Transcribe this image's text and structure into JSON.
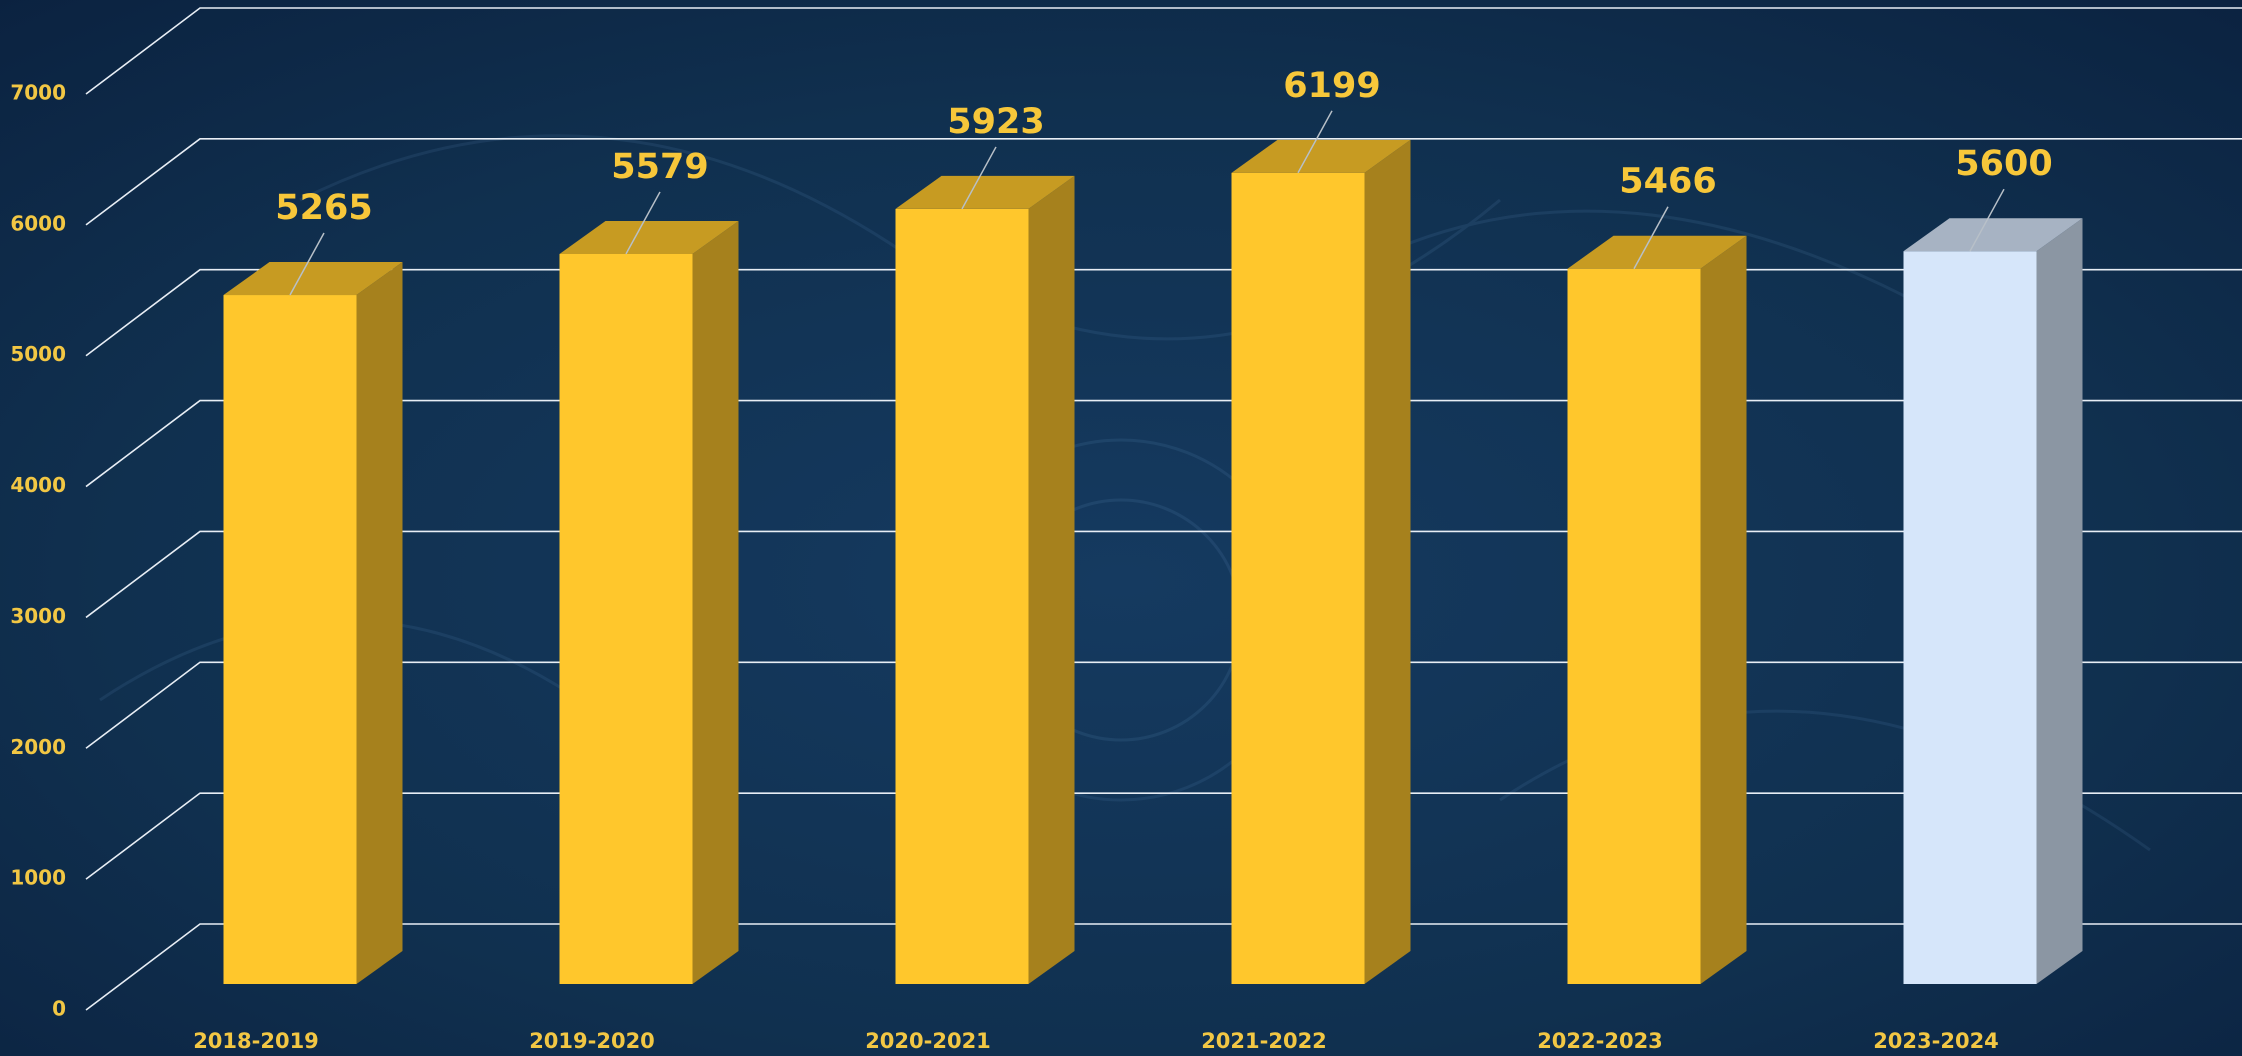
{
  "chart_data": {
    "type": "bar3d",
    "categories": [
      "2018-2019",
      "2019-2020",
      "2020-2021",
      "2021-2022",
      "2022-2023",
      "2023-2024"
    ],
    "values": [
      5265,
      5579,
      5923,
      6199,
      5466,
      5600
    ],
    "colors": [
      "#ffc72c",
      "#ffc72c",
      "#ffc72c",
      "#ffc72c",
      "#ffc72c",
      "#d6e6fa"
    ],
    "ylim": [
      0,
      7000
    ],
    "yticks": [
      0,
      1000,
      2000,
      3000,
      4000,
      5000,
      6000,
      7000
    ],
    "grid": true
  }
}
